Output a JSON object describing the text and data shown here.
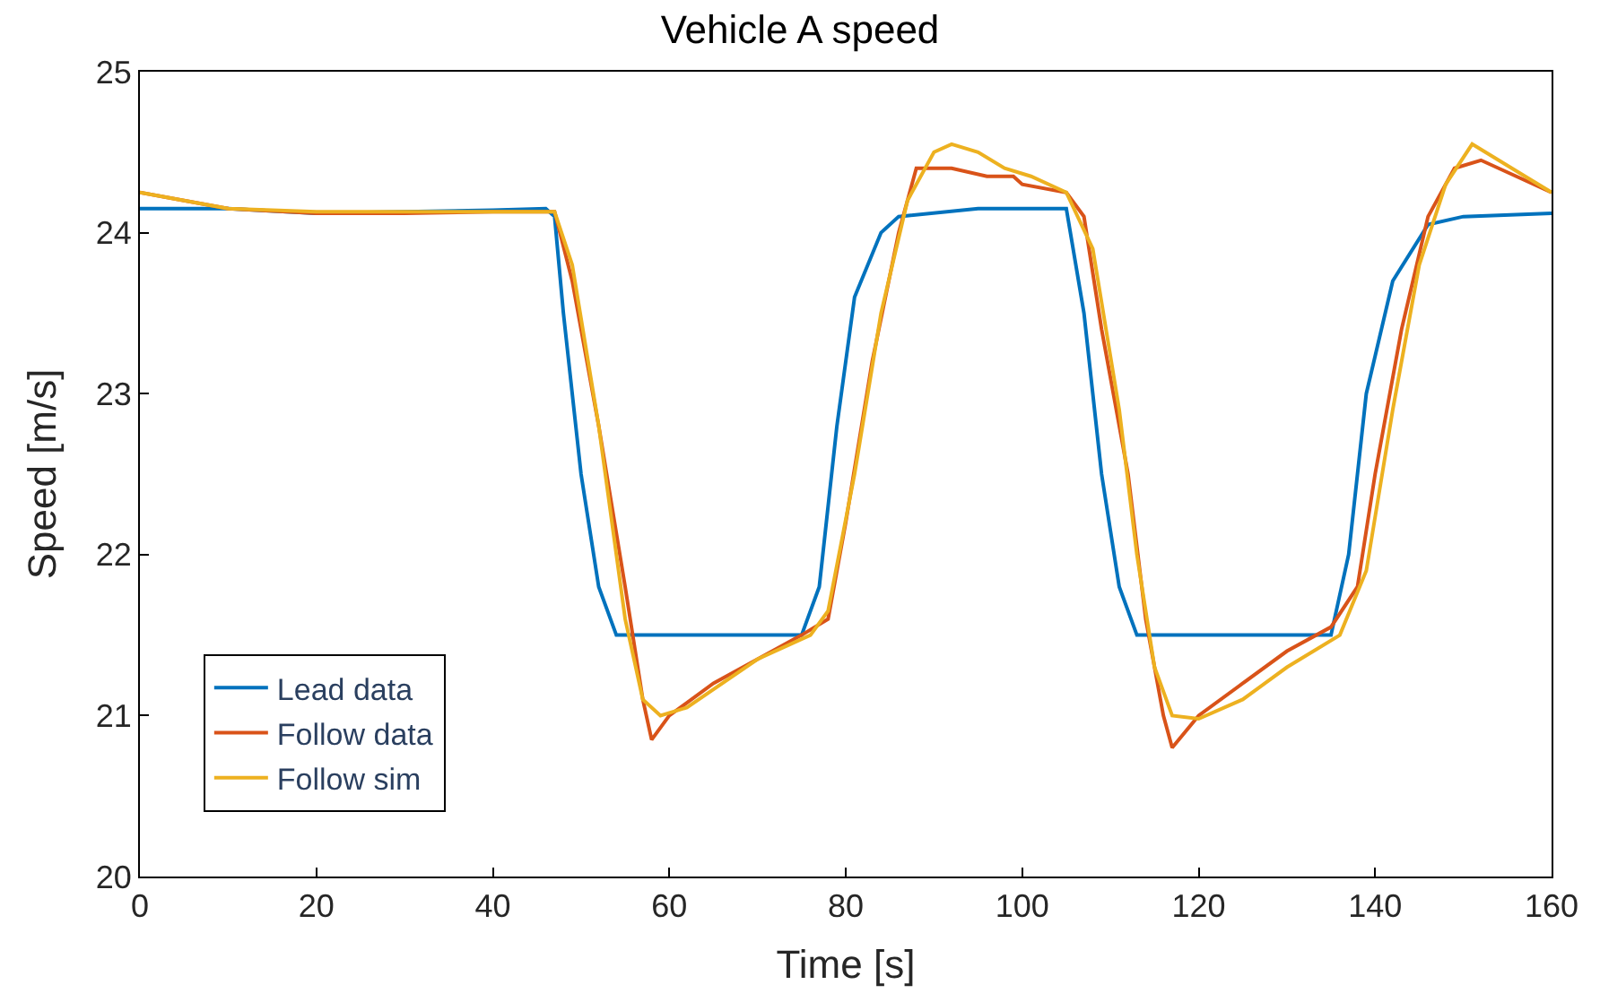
{
  "chart_data": {
    "type": "line",
    "title": "Vehicle A speed",
    "xlabel": "Time [s]",
    "ylabel": "Speed [m/s]",
    "xlim": [
      0,
      160
    ],
    "xticks": [
      0,
      20,
      40,
      60,
      80,
      100,
      120,
      140,
      160
    ],
    "ylim": [
      20,
      25
    ],
    "yticks": [
      20,
      21,
      22,
      23,
      24,
      25
    ],
    "legend": "bottom left",
    "marker": "none",
    "line_style": "solid",
    "series": [
      {
        "name": "Lead data",
        "color": "#0072bd",
        "x": [
          0,
          5,
          10,
          20,
          30,
          40,
          46,
          47,
          48,
          50,
          52,
          54,
          60,
          70,
          75,
          77,
          79,
          81,
          84,
          86,
          95,
          105,
          107,
          109,
          111,
          113,
          120,
          130,
          135,
          137,
          139,
          142,
          146,
          150,
          160
        ],
        "values": [
          24.15,
          24.15,
          24.15,
          24.12,
          24.13,
          24.14,
          24.15,
          24.1,
          23.5,
          22.5,
          21.8,
          21.5,
          21.5,
          21.5,
          21.5,
          21.8,
          22.8,
          23.6,
          24.0,
          24.1,
          24.15,
          24.15,
          23.5,
          22.5,
          21.8,
          21.5,
          21.5,
          21.5,
          21.5,
          22.0,
          23.0,
          23.7,
          24.05,
          24.1,
          24.12
        ]
      },
      {
        "name": "Follow data",
        "color": "#d95319",
        "x": [
          0,
          5,
          10,
          20,
          30,
          40,
          47,
          49,
          52,
          55,
          57,
          58,
          60,
          65,
          70,
          75,
          78,
          80,
          83,
          86,
          88,
          92,
          96,
          99,
          100,
          105,
          107,
          109,
          112,
          114,
          116,
          117,
          120,
          125,
          130,
          135,
          138,
          140,
          143,
          146,
          149,
          152,
          156,
          160
        ],
        "values": [
          24.25,
          24.2,
          24.15,
          24.12,
          24.12,
          24.13,
          24.13,
          23.7,
          22.8,
          21.8,
          21.1,
          20.85,
          21.0,
          21.2,
          21.35,
          21.5,
          21.6,
          22.2,
          23.2,
          24.0,
          24.4,
          24.4,
          24.35,
          24.35,
          24.3,
          24.25,
          24.1,
          23.4,
          22.5,
          21.6,
          21.0,
          20.8,
          21.0,
          21.2,
          21.4,
          21.55,
          21.8,
          22.5,
          23.4,
          24.1,
          24.4,
          24.45,
          24.35,
          24.25
        ]
      },
      {
        "name": "Follow sim",
        "color": "#edb120",
        "x": [
          0,
          10,
          20,
          30,
          40,
          47,
          49,
          52,
          55,
          57,
          59,
          62,
          70,
          76,
          78,
          81,
          84,
          87,
          90,
          92,
          95,
          98,
          101,
          105,
          108,
          111,
          113,
          115,
          117,
          120,
          125,
          130,
          136,
          139,
          142,
          145,
          148,
          151,
          154,
          157,
          160
        ],
        "values": [
          24.25,
          24.15,
          24.13,
          24.13,
          24.13,
          24.13,
          23.8,
          22.8,
          21.6,
          21.1,
          21.0,
          21.05,
          21.35,
          21.5,
          21.65,
          22.5,
          23.5,
          24.2,
          24.5,
          24.55,
          24.5,
          24.4,
          24.35,
          24.25,
          23.9,
          22.9,
          22.0,
          21.3,
          21.0,
          20.98,
          21.1,
          21.3,
          21.5,
          21.9,
          22.9,
          23.8,
          24.3,
          24.55,
          24.45,
          24.35,
          24.25
        ]
      }
    ]
  }
}
